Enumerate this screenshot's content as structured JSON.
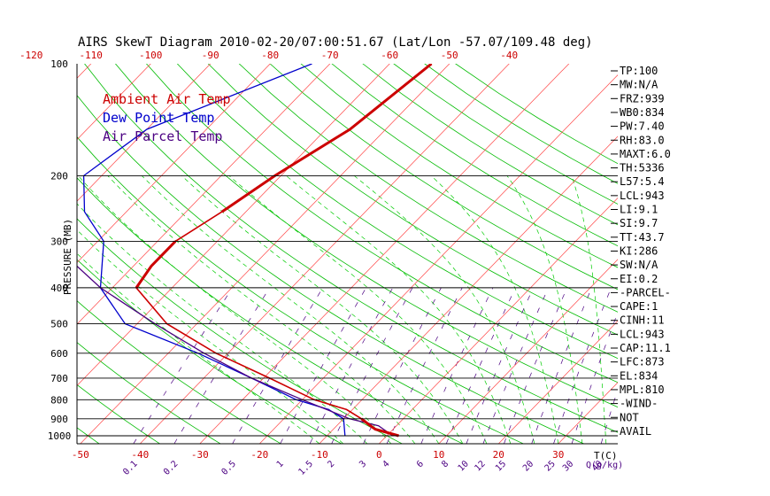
{
  "chart_data": {
    "type": "line",
    "title": "AIRS SkewT Diagram 2010-02-20/07:00:51.67 (Lat/Lon -57.07/109.48 deg)",
    "ylabel": "PRESSURE (MB)",
    "x_unit_label": "T(C)",
    "mix_unit_label": "Q(g/kg)",
    "pressure_ticks": [
      100,
      200,
      300,
      400,
      500,
      600,
      700,
      800,
      900,
      1000
    ],
    "top_temp_ticks": [
      -120,
      -110,
      -100,
      -90,
      -80,
      -70,
      -60,
      -50,
      -40
    ],
    "bottom_temp_ticks": [
      -50,
      -40,
      -30,
      -20,
      -10,
      0,
      10,
      20,
      30
    ],
    "mixing_ratio_ticks": [
      "0.1",
      "0.2",
      "0.5",
      "1",
      "1.5",
      "2",
      "3",
      "4",
      "6",
      "8",
      "10",
      "12",
      "15",
      "20",
      "25",
      "30",
      "40"
    ],
    "legend": [
      "Ambient Air Temp",
      "Dew Point Temp",
      "Air Parcel Temp"
    ],
    "series": [
      {
        "name": "Ambient Air Temp",
        "color": "#cc0000",
        "points": [
          [
            100,
            -53
          ],
          [
            150,
            -56
          ],
          [
            200,
            -61
          ],
          [
            250,
            -64
          ],
          [
            300,
            -67
          ],
          [
            350,
            -67
          ],
          [
            400,
            -66
          ],
          [
            500,
            -55
          ],
          [
            600,
            -42
          ],
          [
            700,
            -29
          ],
          [
            800,
            -18
          ],
          [
            850,
            -11
          ],
          [
            900,
            -7
          ],
          [
            930,
            -5
          ],
          [
            960,
            -3
          ],
          [
            1000,
            2
          ]
        ]
      },
      {
        "name": "Dew Point Temp",
        "color": "#0000cc",
        "points": [
          [
            100,
            -73
          ],
          [
            150,
            -90
          ],
          [
            200,
            -93
          ],
          [
            250,
            -87
          ],
          [
            300,
            -79
          ],
          [
            400,
            -72
          ],
          [
            500,
            -62
          ],
          [
            600,
            -45
          ],
          [
            700,
            -32
          ],
          [
            800,
            -21
          ],
          [
            850,
            -14
          ],
          [
            900,
            -10
          ],
          [
            1000,
            -7
          ]
        ]
      },
      {
        "name": "Air Parcel Temp",
        "color": "#4b0082",
        "points": [
          [
            100,
            -149
          ],
          [
            150,
            -123
          ],
          [
            200,
            -108
          ],
          [
            250,
            -96
          ],
          [
            300,
            -88
          ],
          [
            400,
            -72
          ],
          [
            500,
            -57
          ],
          [
            600,
            -44
          ],
          [
            700,
            -32
          ],
          [
            800,
            -20
          ],
          [
            900,
            -9
          ],
          [
            940,
            -3
          ],
          [
            1000,
            1
          ]
        ]
      }
    ]
  },
  "indices": [
    "TP:100",
    "MW:N/A",
    "FRZ:939",
    "WB0:834",
    "PW:7.40",
    "RH:83.0",
    "MAXT:6.0",
    "TH:5336",
    "L57:5.4",
    "LCL:943",
    "LI:9.1",
    "SI:9.7",
    "TT:43.7",
    "KI:286",
    "SW:N/A",
    "EI:0.2",
    "-PARCEL-",
    "CAPE:1",
    "CINH:11",
    "LCL:943",
    "CAP:11.1",
    "LFC:873",
    "EL:834",
    "MPL:810",
    "-WIND-",
    "NOT",
    "AVAIL"
  ],
  "colors": {
    "ambient": "#cc0000",
    "dewpoint": "#0000cc",
    "parcel": "#4b0082",
    "isotherm": "#ff4444",
    "dry_adiabat": "#00bb00",
    "moist_adiabat": "#00cc00",
    "mixing_ratio": "#4b0082"
  }
}
